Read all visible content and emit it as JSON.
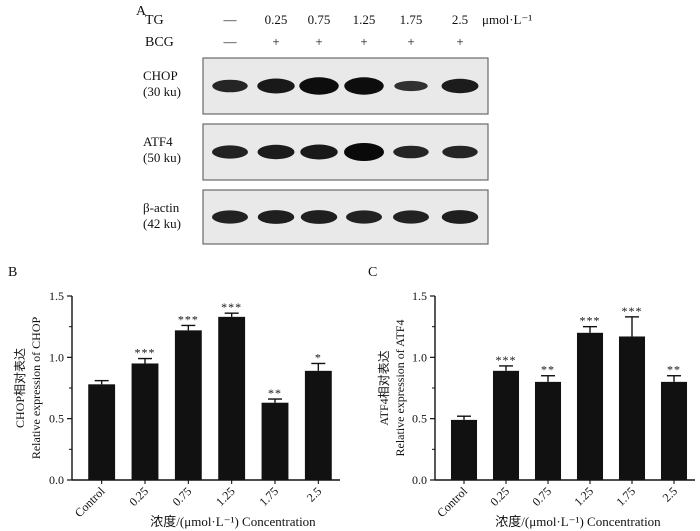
{
  "panel_a": {
    "letter": "A",
    "tg_label": "TG",
    "bcg_label": "BCG",
    "tg_values": [
      "—",
      "0.25",
      "0.75",
      "1.25",
      "1.75",
      "2.5"
    ],
    "tg_unit": "μmol·L⁻¹",
    "bcg_values": [
      "—",
      "+",
      "+",
      "+",
      "+",
      "+"
    ],
    "blots": [
      {
        "name": "CHOP",
        "size": "(30 ku)",
        "intensity": [
          0.55,
          0.75,
          0.95,
          0.95,
          0.35,
          0.7
        ]
      },
      {
        "name": "ATF4",
        "size": "(50 ku)",
        "intensity": [
          0.6,
          0.7,
          0.75,
          1.0,
          0.55,
          0.55
        ]
      },
      {
        "name": "β-actin",
        "size": "(42 ku)",
        "intensity": [
          0.6,
          0.65,
          0.65,
          0.6,
          0.6,
          0.65
        ]
      }
    ]
  },
  "chart_data": [
    {
      "panel": "B",
      "type": "bar",
      "categories": [
        "Control",
        "0.25",
        "0.75",
        "1.25",
        "1.75",
        "2.5"
      ],
      "values": [
        0.78,
        0.95,
        1.22,
        1.33,
        0.63,
        0.89
      ],
      "errors": [
        0.03,
        0.04,
        0.04,
        0.03,
        0.03,
        0.06
      ],
      "significance": [
        "",
        "***",
        "***",
        "***",
        "**",
        "*"
      ],
      "ylabel": "CHOP相对表达",
      "ylabel2": "Relative expression of CHOP",
      "xlabel": "浓度/(μmol·L⁻¹) Concentration",
      "ylim": [
        0,
        1.5
      ],
      "yticks": [
        "0.0",
        "0.5",
        "1.0",
        "1.5"
      ],
      "bar_color": "#111111",
      "grid": false
    },
    {
      "panel": "C",
      "type": "bar",
      "categories": [
        "Control",
        "0.25",
        "0.75",
        "1.25",
        "1.75",
        "2.5"
      ],
      "values": [
        0.49,
        0.89,
        0.8,
        1.2,
        1.17,
        0.8
      ],
      "errors": [
        0.03,
        0.04,
        0.05,
        0.05,
        0.16,
        0.05
      ],
      "significance": [
        "",
        "***",
        "**",
        "***",
        "***",
        "**"
      ],
      "ylabel": "ATF4相对表达",
      "ylabel2": "Relative expression of ATF4",
      "xlabel": "浓度/(μmol·L⁻¹) Concentration",
      "ylim": [
        0,
        1.5
      ],
      "yticks": [
        "0.0",
        "0.5",
        "1.0",
        "1.5"
      ],
      "bar_color": "#111111",
      "grid": false
    }
  ]
}
